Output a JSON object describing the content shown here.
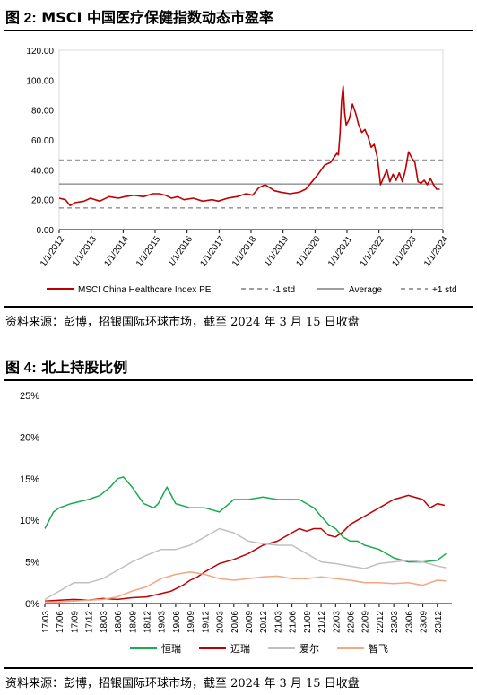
{
  "fig1": {
    "title_prefix": "图 2:",
    "title_text": "MSCI 中国医疗保健指数动态市盈率",
    "source": "资料来源：彭博，招银国际环球市场，截至 2024 年 3 月 15 日收盘"
  },
  "fig2": {
    "title_prefix": "图 4:",
    "title_text": "北上持股比例",
    "source": "资料来源：彭博，招银国际环球市场，截至 2024 年 3 月 15 日收盘"
  },
  "chart_data": [
    {
      "type": "line",
      "y_ticks": [
        "0.00",
        "20.00",
        "40.00",
        "60.00",
        "80.00",
        "100.00",
        "120.00"
      ],
      "ylim": [
        0,
        120
      ],
      "x_ticks": [
        "1/1/2012",
        "1/1/2013",
        "1/1/2014",
        "1/1/2015",
        "1/1/2016",
        "1/1/2017",
        "1/1/2018",
        "1/1/2019",
        "1/1/2020",
        "1/1/2021",
        "1/1/2022",
        "1/1/2023",
        "1/1/2024"
      ],
      "xlim": [
        2012.0,
        2024.3
      ],
      "legend_position": "bottom",
      "series": [
        {
          "name": "MSCI China Healthcare Index PE",
          "color": "#c00000",
          "style": "solid",
          "x": [
            2012.0,
            2012.2,
            2012.35,
            2012.5,
            2012.8,
            2013.0,
            2013.3,
            2013.6,
            2013.9,
            2014.1,
            2014.4,
            2014.7,
            2015.0,
            2015.2,
            2015.4,
            2015.6,
            2015.8,
            2016.0,
            2016.3,
            2016.6,
            2016.9,
            2017.1,
            2017.4,
            2017.7,
            2018.0,
            2018.2,
            2018.4,
            2018.6,
            2018.9,
            2019.1,
            2019.4,
            2019.7,
            2019.9,
            2020.1,
            2020.3,
            2020.5,
            2020.7,
            2020.8,
            2020.9,
            2020.95,
            2021.0,
            2021.05,
            2021.1,
            2021.15,
            2021.2,
            2021.3,
            2021.4,
            2021.5,
            2021.6,
            2021.7,
            2021.8,
            2021.9,
            2022.0,
            2022.1,
            2022.2,
            2022.3,
            2022.4,
            2022.5,
            2022.6,
            2022.7,
            2022.8,
            2022.9,
            2023.0,
            2023.1,
            2023.2,
            2023.3,
            2023.4,
            2023.5,
            2023.6,
            2023.7,
            2023.8,
            2023.9,
            2024.0,
            2024.1,
            2024.2
          ],
          "y": [
            21,
            20,
            16,
            18,
            19,
            21,
            19,
            22,
            21,
            22,
            23,
            22,
            24,
            24,
            23,
            21,
            22,
            20,
            21,
            19,
            20,
            19,
            21,
            22,
            24,
            23,
            28,
            30,
            26,
            25,
            24,
            25,
            27,
            32,
            37,
            43,
            45,
            48,
            51,
            50,
            64,
            86,
            96,
            78,
            70,
            74,
            84,
            78,
            70,
            65,
            67,
            62,
            55,
            57,
            48,
            30,
            35,
            40,
            32,
            37,
            33,
            38,
            32,
            40,
            52,
            48,
            45,
            32,
            31,
            33,
            30,
            34,
            30,
            27,
            27
          ]
        },
        {
          "name": "-1 std",
          "color": "#9e9e9e",
          "style": "dashed",
          "x": [
            2012.0,
            2024.3
          ],
          "y": [
            14.5,
            14.5
          ]
        },
        {
          "name": "Average",
          "color": "#9e9e9e",
          "style": "solid",
          "x": [
            2012.0,
            2024.3
          ],
          "y": [
            30.5,
            30.5
          ]
        },
        {
          "name": "+1 std",
          "color": "#9e9e9e",
          "style": "dashed",
          "x": [
            2012.0,
            2024.3
          ],
          "y": [
            46.5,
            46.5
          ]
        }
      ]
    },
    {
      "type": "line",
      "y_ticks": [
        "0%",
        "5%",
        "10%",
        "15%",
        "20%",
        "25%"
      ],
      "ylim": [
        0,
        25
      ],
      "x_ticks": [
        "17/03",
        "17/06",
        "17/09",
        "17/12",
        "18/03",
        "18/06",
        "18/09",
        "18/12",
        "19/03",
        "19/06",
        "19/09",
        "19/12",
        "20/03",
        "20/06",
        "20/09",
        "20/12",
        "21/03",
        "21/06",
        "21/09",
        "21/12",
        "22/03",
        "22/06",
        "22/09",
        "22/12",
        "23/03",
        "23/06",
        "23/09",
        "23/12"
      ],
      "xlim": [
        0,
        28
      ],
      "legend_position": "bottom",
      "series": [
        {
          "name": "恒瑞",
          "color": "#1aab50",
          "x": [
            0,
            0.6,
            1,
            1.8,
            3,
            3.8,
            4.5,
            5,
            5.4,
            6,
            6.4,
            6.8,
            7.5,
            7.8,
            8.4,
            9,
            10,
            11,
            12,
            13,
            13.5,
            14,
            15,
            16,
            17,
            17.5,
            18,
            18.5,
            19,
            19.5,
            20,
            20.5,
            21,
            21.5,
            22,
            23,
            24,
            25,
            26,
            27,
            27.6
          ],
          "y": [
            9,
            11,
            11.5,
            12,
            12.5,
            13,
            14,
            15,
            15.2,
            14,
            13,
            12,
            11.5,
            12,
            14,
            12,
            11.5,
            11.5,
            11,
            12.5,
            12.5,
            12.5,
            12.8,
            12.5,
            12.5,
            12.5,
            12,
            11.5,
            10.5,
            9.5,
            9,
            8,
            7.5,
            7.5,
            7,
            6.5,
            5.5,
            5,
            5,
            5.2,
            6
          ]
        },
        {
          "name": "迈瑞",
          "color": "#c00000",
          "x": [
            0,
            1,
            2,
            3,
            4,
            5,
            6,
            7,
            8,
            8.7,
            9.5,
            10,
            10.5,
            11,
            12,
            13,
            14,
            15,
            16,
            17,
            17.5,
            18,
            18.5,
            19,
            19.5,
            20,
            20.5,
            21,
            21.5,
            22,
            23,
            24,
            25,
            26,
            26.5,
            27,
            27.5
          ],
          "y": [
            0.3,
            0.4,
            0.5,
            0.4,
            0.6,
            0.5,
            0.7,
            0.8,
            1.2,
            1.5,
            2.2,
            2.8,
            3.2,
            3.8,
            4.8,
            5.3,
            6,
            7,
            7.5,
            8.5,
            9,
            8.7,
            9,
            9,
            8.2,
            8,
            8.6,
            9.5,
            10,
            10.5,
            11.5,
            12.5,
            13,
            12.5,
            11.5,
            12,
            11.8
          ]
        },
        {
          "name": "爱尔",
          "color": "#c0c0c0",
          "x": [
            0,
            1,
            2,
            3,
            4,
            5,
            6,
            7,
            8,
            9,
            10,
            11,
            12,
            13,
            14,
            15,
            16,
            17,
            18,
            19,
            20,
            21,
            22,
            23,
            24,
            25,
            26,
            27,
            27.6
          ],
          "y": [
            0.5,
            1.5,
            2.5,
            2.5,
            3,
            4,
            5,
            5.8,
            6.5,
            6.5,
            7,
            8,
            9,
            8.5,
            7.5,
            7.2,
            7,
            7,
            6,
            5,
            4.8,
            4.5,
            4.2,
            4.8,
            5,
            5.2,
            5,
            4.5,
            4.3
          ]
        },
        {
          "name": "智飞",
          "color": "#f4a582",
          "x": [
            0,
            1,
            2,
            3,
            4,
            5,
            6,
            7,
            8,
            9,
            10,
            11,
            12,
            13,
            14,
            15,
            16,
            17,
            18,
            19,
            20,
            21,
            22,
            23,
            24,
            25,
            26,
            27,
            27.6
          ],
          "y": [
            0.2,
            0.2,
            0.3,
            0.4,
            0.5,
            0.8,
            1.5,
            2,
            3,
            3.5,
            3.8,
            3.5,
            3,
            2.8,
            3,
            3.2,
            3.3,
            3,
            3,
            3.2,
            3,
            2.8,
            2.5,
            2.5,
            2.4,
            2.5,
            2.2,
            2.8,
            2.7
          ]
        }
      ]
    }
  ]
}
